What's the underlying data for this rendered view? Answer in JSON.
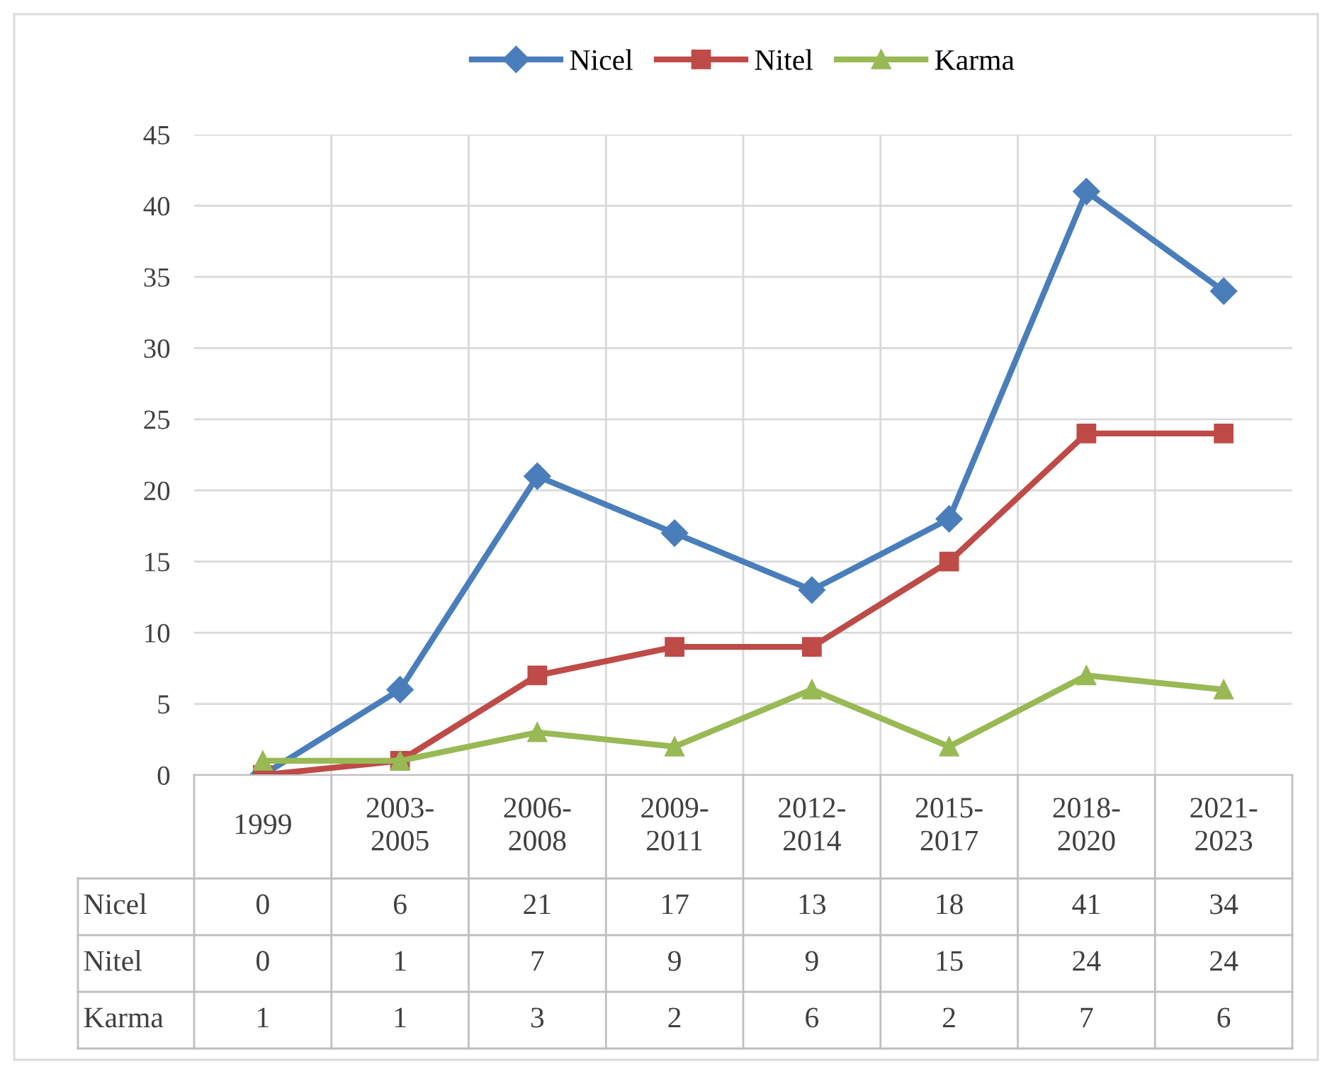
{
  "chart_data": {
    "type": "line",
    "categories": [
      "1999",
      "2003-\n2005",
      "2006-\n2008",
      "2009-\n2011",
      "2012-\n2014",
      "2015-\n2017",
      "2018-\n2020",
      "2021-\n2023"
    ],
    "series": [
      {
        "name": "Nicel",
        "color": "#4a7ebb",
        "marker": "diamond",
        "values": [
          0,
          6,
          21,
          17,
          13,
          18,
          41,
          34
        ]
      },
      {
        "name": "Nitel",
        "color": "#be4b48",
        "marker": "square",
        "values": [
          0,
          1,
          7,
          9,
          9,
          15,
          24,
          24
        ]
      },
      {
        "name": "Karma",
        "color": "#98b954",
        "marker": "triangle",
        "values": [
          1,
          1,
          3,
          2,
          6,
          2,
          7,
          6
        ]
      }
    ],
    "ylim": [
      0,
      45
    ],
    "yticks": [
      0,
      5,
      10,
      15,
      20,
      25,
      30,
      35,
      40,
      45
    ],
    "grid": true,
    "legend": "top",
    "line_style": "solid",
    "data_labels": true
  }
}
